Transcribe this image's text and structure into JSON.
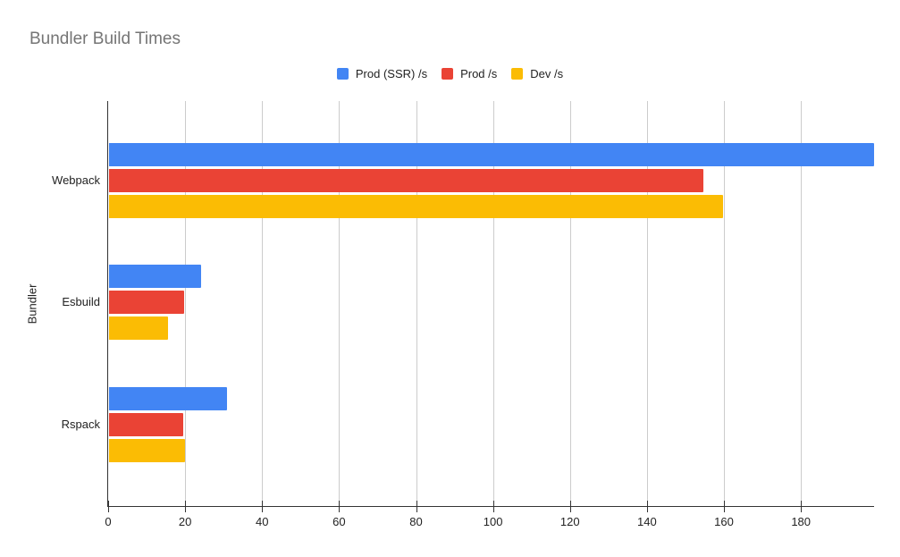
{
  "page": {
    "background": "#ffffff"
  },
  "chart_data": {
    "type": "bar",
    "orientation": "horizontal",
    "title": "Bundler Build Times",
    "xlabel": "",
    "ylabel": "Bundler",
    "categories": [
      "Webpack",
      "Esbuild",
      "Rspack"
    ],
    "series": [
      {
        "name": "Prod (SSR) /s",
        "color": "#4285F4",
        "values": [
          198.8,
          23.8,
          30.6
        ]
      },
      {
        "name": "Prod /s",
        "color": "#EA4335",
        "values": [
          154.4,
          19.4,
          19.2
        ]
      },
      {
        "name": "Dev /s",
        "color": "#FBBC04",
        "values": [
          159.5,
          15.3,
          19.8
        ]
      }
    ],
    "xlim": [
      0,
      199
    ],
    "xticks": [
      0,
      20,
      40,
      60,
      80,
      100,
      120,
      140,
      160,
      180
    ],
    "grid": true,
    "legend_position": "top",
    "styles": {
      "title_color": "#757575",
      "axis_label_color": "#222222",
      "gridline_color": "#cccccc",
      "axis_line_color": "#333333"
    }
  }
}
